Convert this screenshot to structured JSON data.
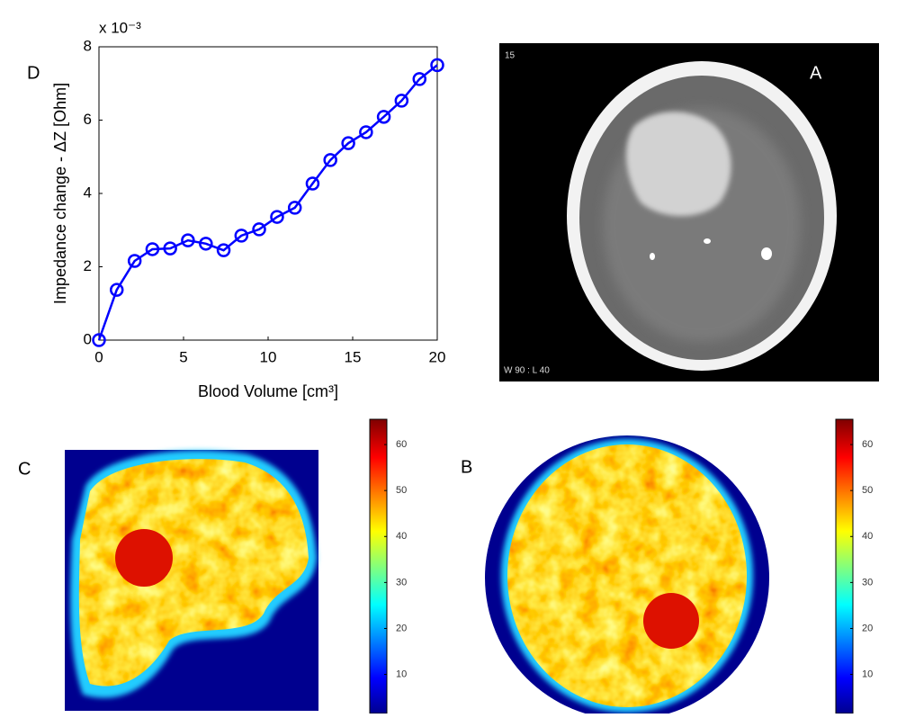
{
  "panel_labels": [
    "A",
    "B",
    "C",
    "D"
  ],
  "ct_texts": [
    "15",
    "W 90 : L 40"
  ],
  "chart_data": [
    {
      "type": "line",
      "xlabel": "Blood Volume [cm³]",
      "ylabel": "Impedance change - ΔZ [Ohm]",
      "y_multiplier": "x 10⁻³",
      "x": [
        0,
        1.05,
        2.11,
        3.16,
        4.21,
        5.26,
        6.32,
        7.37,
        8.42,
        9.47,
        10.53,
        11.58,
        12.63,
        13.68,
        14.74,
        15.79,
        16.84,
        17.89,
        18.95,
        20
      ],
      "series": [
        {
          "color": "#0000ff",
          "values": [
            0,
            1.37,
            2.16,
            2.48,
            2.5,
            2.72,
            2.63,
            2.45,
            2.85,
            3.02,
            3.36,
            3.61,
            4.27,
            4.91,
            5.37,
            5.67,
            6.09,
            6.53,
            7.12,
            7.5
          ]
        }
      ],
      "xlim": [
        0,
        20
      ],
      "xticks": [
        0,
        5,
        10,
        15,
        20
      ],
      "ylim": [
        0,
        8
      ],
      "yticks": [
        0,
        2,
        4,
        6,
        8
      ],
      "grid": false
    },
    {
      "type": "colorbar",
      "ylim": [
        1.5,
        65.5
      ],
      "yticks": [
        10,
        20,
        30,
        40,
        50,
        60
      ]
    },
    {
      "type": "colorbar",
      "ylim": [
        1.5,
        65.5
      ],
      "yticks": [
        10,
        20,
        30,
        40,
        50,
        60
      ]
    }
  ]
}
